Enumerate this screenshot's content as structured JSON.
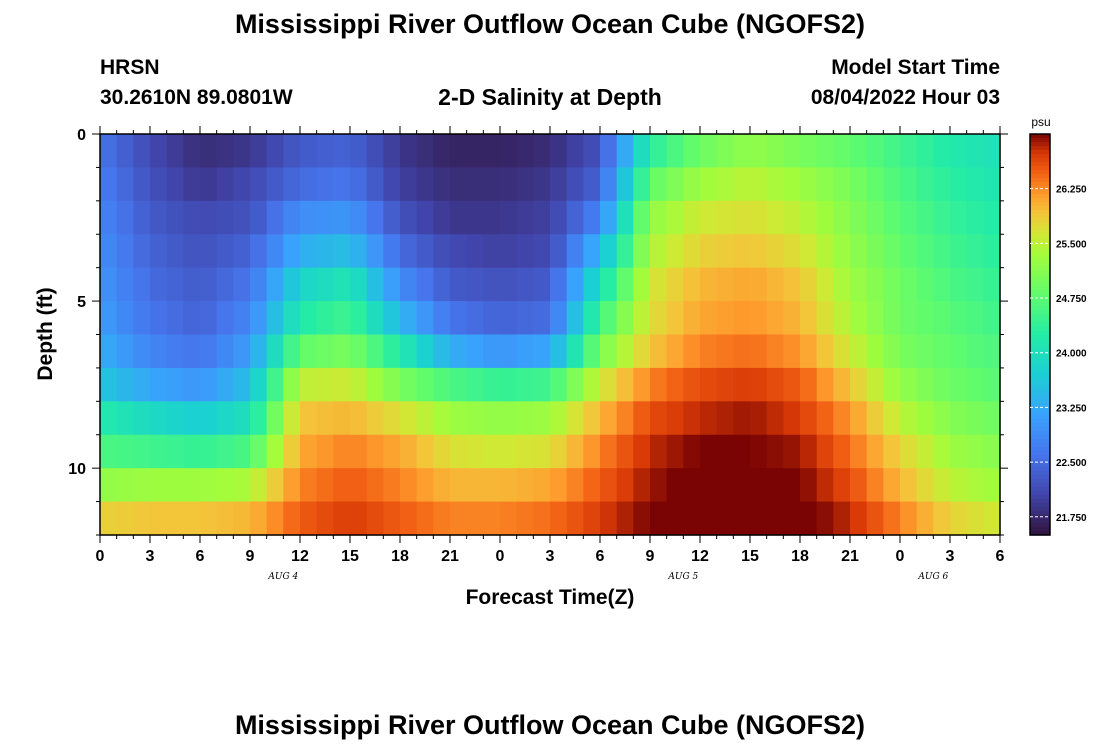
{
  "figure": {
    "title": "Mississippi River Outflow Ocean Cube (NGOFS2)",
    "station": "HRSN",
    "coords": "30.2610N  89.0801W",
    "subtitle": "2-D Salinity at Depth",
    "model_label": "Model Start Time",
    "model_time": "08/04/2022 Hour 03",
    "second_title": "Mississippi River Outflow Ocean Cube (NGOFS2)"
  },
  "chart_data": {
    "type": "heatmap",
    "title": "2-D Salinity at Depth",
    "xlabel": "Forecast Time(Z)",
    "ylabel": "Depth (ft)",
    "x_ticks": [
      "0",
      "3",
      "6",
      "9",
      "12",
      "15",
      "18",
      "21",
      "0",
      "3",
      "6",
      "9",
      "12",
      "15",
      "18",
      "21",
      "0",
      "3",
      "6"
    ],
    "date_labels": [
      {
        "label": "AUG 4",
        "hour_index": 11
      },
      {
        "label": "AUG 5",
        "hour_index": 35
      },
      {
        "label": "AUG 6",
        "hour_index": 50
      }
    ],
    "y_ticks": [
      "0",
      "5",
      "10"
    ],
    "ylim_ft": [
      12,
      0
    ],
    "x_range_hours": [
      0,
      54
    ],
    "colorbar": {
      "unit": "psu",
      "ticks": [
        "26.250",
        "25.500",
        "24.750",
        "24.000",
        "23.250",
        "22.500",
        "21.750"
      ],
      "range": [
        21.5,
        27.0
      ]
    },
    "depth_levels_ft": [
      0.5,
      1.5,
      2.5,
      3.5,
      4.5,
      5.5,
      6.5,
      7.5,
      8.5,
      9.5,
      10.5,
      11.5
    ],
    "time_nodes_hours": [
      0,
      3,
      6,
      9,
      12,
      15,
      18,
      21,
      24,
      27,
      30,
      33,
      36,
      39,
      42,
      45,
      48,
      51,
      54
    ],
    "salinity_psu": [
      [
        22.6,
        22.1,
        21.8,
        21.9,
        22.3,
        22.4,
        21.9,
        21.7,
        21.7,
        21.8,
        22.2,
        24.3,
        24.9,
        25.2,
        25.0,
        24.8,
        24.5,
        24.2,
        24.0
      ],
      [
        22.7,
        22.2,
        21.9,
        22.1,
        22.5,
        22.6,
        22.0,
        21.8,
        21.8,
        21.9,
        22.4,
        24.8,
        25.3,
        25.5,
        25.3,
        25.0,
        24.6,
        24.3,
        24.1
      ],
      [
        22.8,
        22.3,
        22.1,
        22.2,
        22.9,
        23.0,
        22.2,
        21.9,
        21.9,
        22.0,
        22.8,
        25.2,
        25.6,
        25.7,
        25.5,
        25.1,
        24.7,
        24.4,
        24.2
      ],
      [
        22.9,
        22.4,
        22.2,
        22.4,
        23.3,
        23.5,
        22.5,
        22.1,
        22.0,
        22.1,
        23.4,
        25.4,
        25.8,
        25.9,
        25.7,
        25.2,
        24.8,
        24.5,
        24.3
      ],
      [
        23.0,
        22.5,
        22.3,
        22.6,
        23.8,
        24.1,
        22.9,
        22.3,
        22.2,
        22.3,
        24.0,
        25.6,
        26.0,
        26.1,
        25.9,
        25.3,
        24.9,
        24.6,
        24.4
      ],
      [
        23.1,
        22.6,
        22.4,
        22.8,
        24.2,
        24.5,
        23.4,
        22.6,
        22.4,
        22.5,
        24.5,
        25.7,
        26.1,
        26.2,
        26.0,
        25.4,
        24.9,
        24.7,
        24.5
      ],
      [
        23.3,
        22.8,
        22.6,
        23.1,
        24.8,
        25.0,
        24.2,
        23.3,
        23.0,
        23.2,
        25.0,
        25.9,
        26.3,
        26.4,
        26.2,
        25.6,
        25.0,
        24.8,
        24.6
      ],
      [
        23.6,
        23.2,
        23.0,
        23.5,
        25.5,
        25.6,
        25.0,
        24.6,
        24.4,
        24.5,
        25.6,
        26.3,
        26.6,
        26.7,
        26.5,
        25.9,
        25.2,
        24.9,
        24.7
      ],
      [
        24.2,
        23.9,
        23.7,
        24.0,
        25.9,
        26.0,
        25.7,
        25.3,
        25.2,
        25.3,
        26.0,
        26.6,
        26.8,
        26.9,
        26.7,
        26.2,
        25.5,
        25.1,
        24.9
      ],
      [
        24.6,
        24.5,
        24.4,
        24.6,
        26.1,
        26.3,
        26.1,
        25.7,
        25.6,
        25.7,
        26.3,
        26.8,
        27.0,
        27.0,
        26.9,
        26.4,
        25.8,
        25.3,
        25.1
      ],
      [
        25.2,
        25.3,
        25.3,
        25.4,
        26.3,
        26.5,
        26.3,
        26.0,
        26.0,
        26.1,
        26.5,
        26.9,
        27.1,
        27.2,
        27.0,
        26.6,
        26.0,
        25.5,
        25.3
      ],
      [
        25.8,
        25.9,
        25.9,
        26.0,
        26.5,
        26.7,
        26.5,
        26.3,
        26.3,
        26.4,
        26.7,
        27.0,
        27.2,
        27.3,
        27.1,
        26.8,
        26.3,
        25.8,
        25.6
      ]
    ]
  }
}
